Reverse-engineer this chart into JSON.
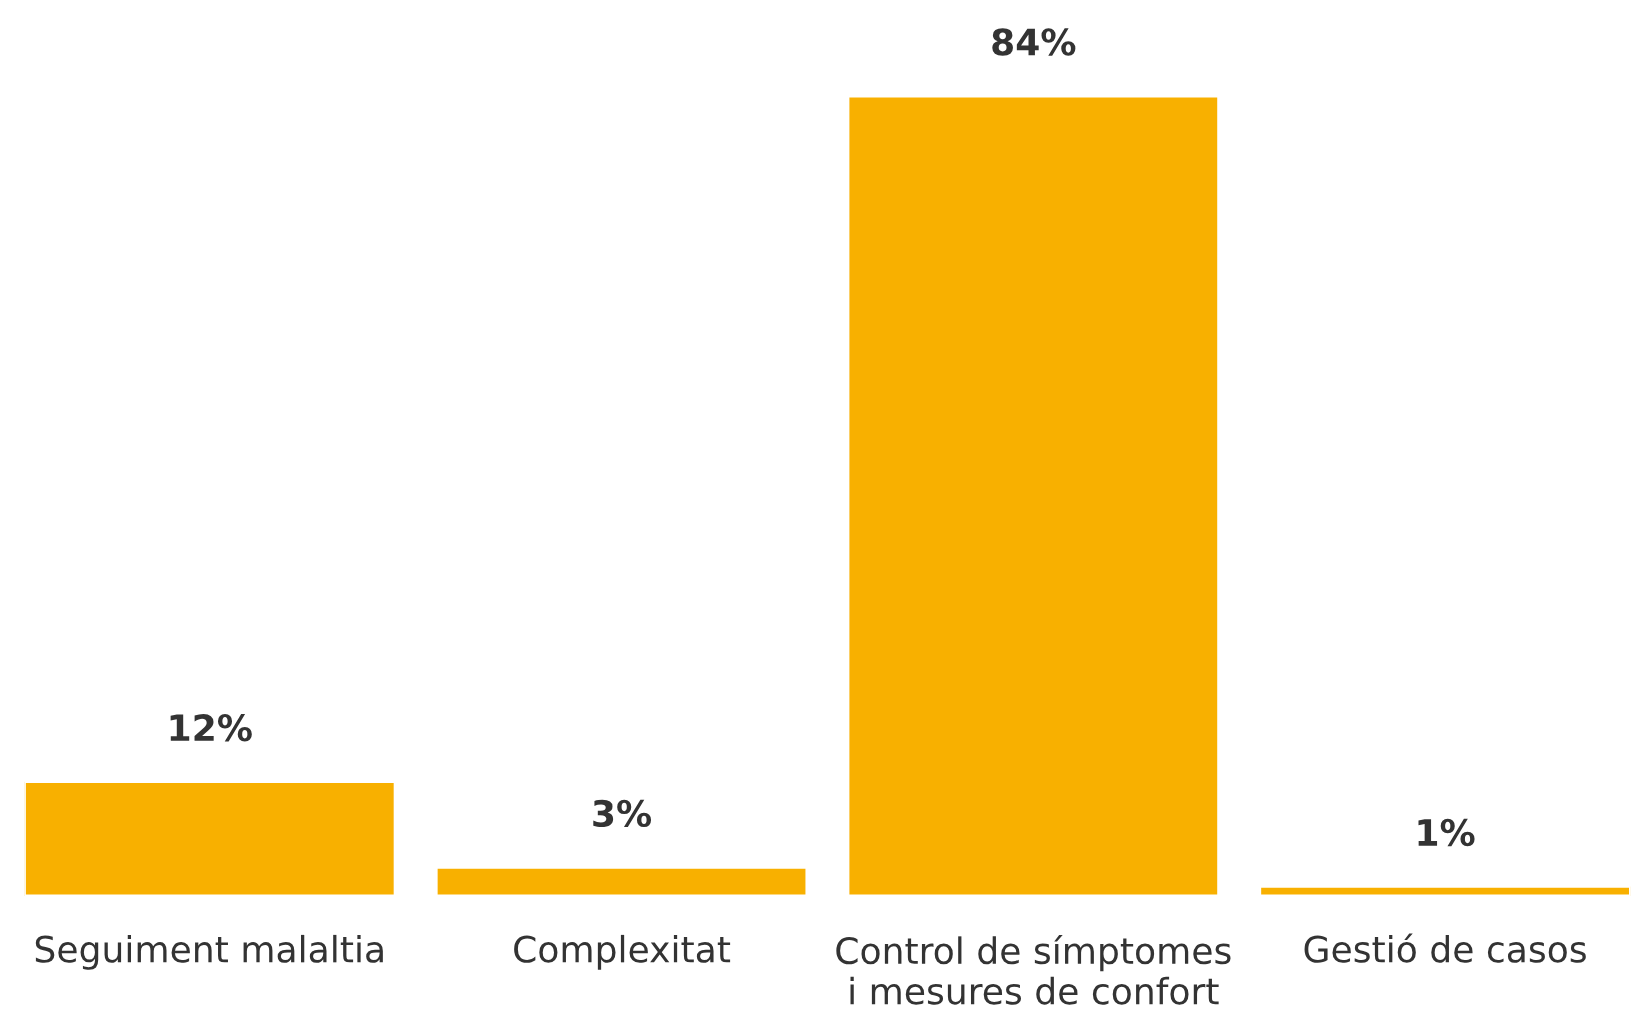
{
  "chart_data": {
    "type": "bar",
    "categories": [
      "Seguiment malaltia",
      "Complexitat",
      "Control de símptomes\ni mesures de confort",
      "Gestió de casos"
    ],
    "values": [
      12,
      3,
      84,
      1
    ],
    "value_labels": [
      "12%",
      "3%",
      "84%",
      "1%"
    ],
    "color": "#f8b000"
  }
}
